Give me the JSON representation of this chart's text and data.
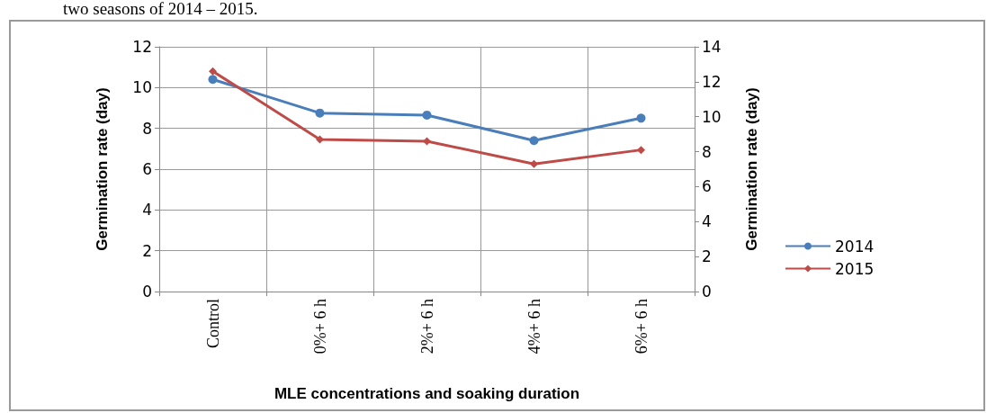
{
  "chart_data": {
    "type": "line",
    "annotations": [
      "two seasons of 2014 – 2015."
    ],
    "xlabel": "MLE concentrations and soaking duration",
    "ylabel": "Germination rate (day)",
    "y2label": "Germination rate (day)",
    "categories": [
      "Control",
      "0%+ 6 h",
      "2%+ 6 h",
      "4%+ 6 h",
      "6%+ 6 h"
    ],
    "series": [
      {
        "name": "2014",
        "color": "#4a7ebb",
        "marker": "circle",
        "values": [
          10.4,
          8.75,
          8.65,
          7.4,
          8.5
        ]
      },
      {
        "name": "2015",
        "color": "#be4b48",
        "marker": "diamond",
        "axis": "y2",
        "values": [
          12.6,
          8.7,
          8.6,
          7.3,
          8.1
        ]
      }
    ],
    "ylim": [
      0,
      12
    ],
    "yticks": [
      0,
      2,
      4,
      6,
      8,
      10,
      12
    ],
    "y2lim": [
      0,
      14
    ],
    "y2ticks": [
      0,
      2,
      4,
      6,
      8,
      10,
      12,
      14
    ],
    "grid": true,
    "legend": "right"
  }
}
